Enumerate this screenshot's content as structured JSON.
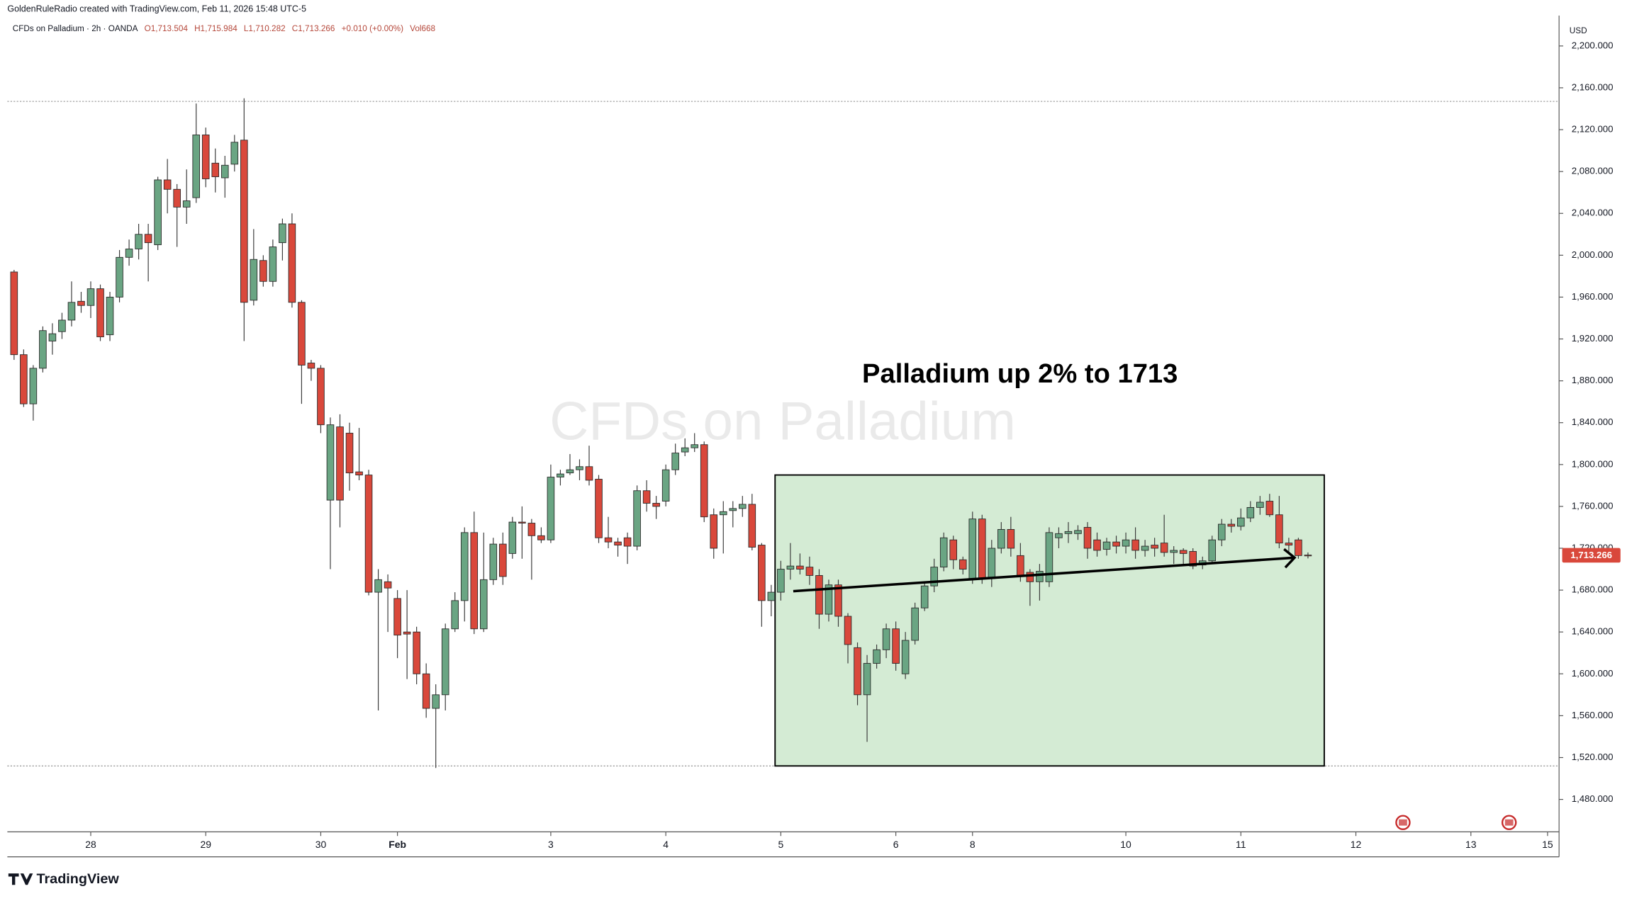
{
  "chart_data": {
    "type": "candlestick",
    "header": "GoldenRuleRadio created with TradingView.com, Feb 11, 2026 15:48 UTC-5",
    "legend": {
      "symbol": "CFDs on Palladium · 2h · OANDA",
      "open": "O1,713.504",
      "high": "H1,715.984",
      "low": "L1,710.282",
      "close": "C1,713.266",
      "change": "+0.010 (+0.00%)",
      "volume": "Vol668"
    },
    "currency": "USD",
    "watermark": "CFDs on Palladium",
    "annotation": "Palladium up 2% to 1713",
    "last_price_label": "1,713.266",
    "logo": "TradingView",
    "up_color": "#6aa583",
    "down_color": "#d9483b",
    "x": [
      0,
      1,
      2,
      3,
      4,
      5,
      6,
      7,
      8,
      9,
      10,
      11,
      12,
      13,
      14,
      15,
      16,
      17,
      18,
      19,
      20,
      21,
      22,
      23,
      24,
      25,
      26,
      27,
      28,
      29,
      30,
      31,
      32,
      33,
      34,
      35,
      36,
      37,
      38,
      39,
      40,
      41,
      42,
      43,
      44,
      45,
      46,
      47,
      48,
      49,
      50,
      51,
      52,
      53,
      54,
      55,
      56,
      57,
      58,
      59,
      60,
      61,
      62,
      63,
      64,
      65,
      66,
      67,
      68,
      69,
      70,
      71,
      72,
      73,
      74,
      75,
      76,
      77,
      78,
      79,
      80,
      81,
      82,
      83,
      84,
      85,
      86,
      87,
      88,
      89,
      90,
      91,
      92,
      93,
      94,
      95,
      96,
      97,
      98,
      99,
      100,
      101,
      102,
      103,
      104,
      105,
      106,
      107,
      108,
      109,
      110,
      111,
      112,
      113,
      114,
      115,
      116,
      117,
      118,
      119,
      120,
      121,
      122,
      123,
      124,
      125,
      126,
      127,
      128,
      129,
      130,
      131,
      132,
      133,
      134,
      135
    ],
    "open": [
      1984,
      1905,
      1858,
      1892,
      1918,
      1927,
      1938,
      1956,
      1952,
      1968,
      1924,
      1960,
      1998,
      2006,
      2020,
      2010,
      2072,
      2063,
      2046,
      2055,
      2115,
      2088,
      2074,
      2087,
      2110,
      1957,
      1995,
      1975,
      2012,
      2030,
      1955,
      1897,
      1892,
      1766,
      1836,
      1830,
      1793,
      1790,
      1678,
      1688,
      1672,
      1640,
      1640,
      1600,
      1567,
      1580,
      1643,
      1670,
      1735,
      1643,
      1690,
      1724,
      1715,
      1745,
      1744,
      1732,
      1728,
      1788,
      1792,
      1795,
      1798,
      1786,
      1730,
      1726,
      1730,
      1722,
      1775,
      1763,
      1765,
      1795,
      1812,
      1816,
      1819,
      1752,
      1752,
      1756,
      1758,
      1762,
      1723,
      1670,
      1678,
      1700,
      1703,
      1702,
      1694,
      1657,
      1685,
      1655,
      1625,
      1580,
      1610,
      1623,
      1643,
      1600,
      1632,
      1663,
      1684,
      1702,
      1728,
      1709,
      1691,
      1748,
      1691,
      1720,
      1738,
      1713,
      1697,
      1688,
      1688,
      1730,
      1734,
      1734,
      1740,
      1728,
      1719,
      1726,
      1722,
      1728,
      1718,
      1723,
      1725,
      1716,
      1718,
      1717,
      1704,
      1708,
      1728,
      1743,
      1741,
      1749,
      1759,
      1765,
      1752,
      1725,
      1728,
      1713.504
    ],
    "high": [
      1986,
      1910,
      1895,
      1932,
      1935,
      1945,
      1975,
      1965,
      1975,
      1972,
      1965,
      2005,
      2015,
      2030,
      2030,
      2075,
      2092,
      2068,
      2082,
      2145,
      2122,
      2102,
      2095,
      2115,
      2150,
      2025,
      2000,
      2015,
      2035,
      2040,
      1957,
      1900,
      1895,
      1845,
      1848,
      1840,
      1835,
      1795,
      1700,
      1695,
      1680,
      1680,
      1645,
      1610,
      1590,
      1648,
      1678,
      1740,
      1755,
      1735,
      1730,
      1735,
      1750,
      1760,
      1748,
      1740,
      1800,
      1795,
      1810,
      1805,
      1818,
      1790,
      1750,
      1730,
      1735,
      1780,
      1785,
      1770,
      1800,
      1820,
      1825,
      1830,
      1822,
      1758,
      1765,
      1765,
      1770,
      1772,
      1725,
      1685,
      1708,
      1725,
      1715,
      1712,
      1700,
      1690,
      1690,
      1658,
      1630,
      1618,
      1628,
      1648,
      1650,
      1640,
      1668,
      1688,
      1710,
      1735,
      1732,
      1712,
      1755,
      1752,
      1728,
      1745,
      1750,
      1725,
      1700,
      1705,
      1740,
      1740,
      1745,
      1742,
      1745,
      1735,
      1730,
      1732,
      1735,
      1740,
      1728,
      1730,
      1752,
      1722,
      1720,
      1720,
      1712,
      1732,
      1748,
      1748,
      1758,
      1765,
      1770,
      1772,
      1770,
      1730,
      1730,
      1715.984
    ],
    "low": [
      1900,
      1855,
      1842,
      1888,
      1905,
      1920,
      1932,
      1945,
      1940,
      1918,
      1918,
      1955,
      1990,
      1996,
      1975,
      2005,
      2040,
      2008,
      2030,
      2050,
      2065,
      2060,
      2055,
      2080,
      1918,
      1952,
      1970,
      1970,
      1995,
      1950,
      1858,
      1880,
      1830,
      1700,
      1740,
      1775,
      1785,
      1675,
      1565,
      1640,
      1615,
      1595,
      1590,
      1558,
      1510,
      1565,
      1640,
      1650,
      1638,
      1640,
      1685,
      1685,
      1710,
      1710,
      1690,
      1725,
      1725,
      1780,
      1790,
      1785,
      1780,
      1725,
      1720,
      1712,
      1705,
      1718,
      1755,
      1748,
      1760,
      1790,
      1808,
      1812,
      1745,
      1710,
      1715,
      1740,
      1750,
      1718,
      1645,
      1655,
      1670,
      1690,
      1695,
      1685,
      1643,
      1650,
      1645,
      1610,
      1570,
      1535,
      1605,
      1615,
      1603,
      1595,
      1628,
      1660,
      1678,
      1698,
      1700,
      1695,
      1686,
      1686,
      1683,
      1715,
      1712,
      1688,
      1665,
      1670,
      1683,
      1720,
      1725,
      1728,
      1710,
      1712,
      1713,
      1715,
      1715,
      1710,
      1712,
      1712,
      1712,
      1705,
      1705,
      1700,
      1700,
      1705,
      1722,
      1735,
      1737,
      1745,
      1752,
      1750,
      1720,
      1715,
      1710,
      1710.282
    ],
    "close": [
      1905,
      1858,
      1892,
      1928,
      1925,
      1938,
      1955,
      1952,
      1968,
      1922,
      1960,
      1998,
      2006,
      2020,
      2012,
      2072,
      2063,
      2046,
      2052,
      2115,
      2073,
      2075,
      2086,
      2108,
      1955,
      1996,
      1975,
      2008,
      2030,
      1955,
      1895,
      1892,
      1838,
      1838,
      1766,
      1792,
      1790,
      1678,
      1690,
      1682,
      1637,
      1638,
      1600,
      1567,
      1580,
      1643,
      1670,
      1735,
      1643,
      1690,
      1724,
      1693,
      1745,
      1744,
      1732,
      1728,
      1788,
      1791,
      1795,
      1798,
      1785,
      1730,
      1726,
      1723,
      1722,
      1775,
      1763,
      1760,
      1795,
      1811,
      1816,
      1819,
      1750,
      1720,
      1755,
      1758,
      1762,
      1721,
      1670,
      1678,
      1700,
      1703,
      1700,
      1694,
      1657,
      1685,
      1655,
      1628,
      1580,
      1610,
      1623,
      1643,
      1610,
      1632,
      1663,
      1684,
      1702,
      1730,
      1709,
      1700,
      1748,
      1691,
      1720,
      1738,
      1720,
      1694,
      1688,
      1698,
      1735,
      1734,
      1736,
      1737,
      1720,
      1718,
      1726,
      1722,
      1728,
      1718,
      1722,
      1720,
      1716,
      1718,
      1715,
      1703,
      1708,
      1728,
      1743,
      1741,
      1749,
      1759,
      1764,
      1752,
      1725,
      1723,
      1713,
      1713.266
    ],
    "xlim": [
      -0.7,
      161.2
    ],
    "xticks": [
      {
        "value": 8,
        "label": "28"
      },
      {
        "value": 20,
        "label": "29"
      },
      {
        "value": 32,
        "label": "30"
      },
      {
        "value": 40,
        "label": "Feb"
      },
      {
        "value": 56,
        "label": "3"
      },
      {
        "value": 68,
        "label": "4"
      },
      {
        "value": 80,
        "label": "5"
      },
      {
        "value": 92,
        "label": "6"
      },
      {
        "value": 100,
        "label": "8"
      },
      {
        "value": 116,
        "label": "10"
      },
      {
        "value": 128,
        "label": "11"
      },
      {
        "value": 140,
        "label": "12"
      },
      {
        "value": 152,
        "label": "13"
      },
      {
        "value": 160,
        "label": "15"
      }
    ],
    "ylim": [
      1449,
      2229
    ],
    "yticks": [
      {
        "value": 1480,
        "label": "1,480.000"
      },
      {
        "value": 1520,
        "label": "1,520.000"
      },
      {
        "value": 1560,
        "label": "1,560.000"
      },
      {
        "value": 1600,
        "label": "1,600.000"
      },
      {
        "value": 1640,
        "label": "1,640.000"
      },
      {
        "value": 1680,
        "label": "1,680.000"
      },
      {
        "value": 1720,
        "label": "1,720.000"
      },
      {
        "value": 1760,
        "label": "1,760.000"
      },
      {
        "value": 1800,
        "label": "1,800.000"
      },
      {
        "value": 1840,
        "label": "1,840.000"
      },
      {
        "value": 1880,
        "label": "1,880.000"
      },
      {
        "value": 1920,
        "label": "1,920.000"
      },
      {
        "value": 1960,
        "label": "1,960.000"
      },
      {
        "value": 2000,
        "label": "2,000.000"
      },
      {
        "value": 2040,
        "label": "2,040.000"
      },
      {
        "value": 2080,
        "label": "2,080.000"
      },
      {
        "value": 2120,
        "label": "2,120.000"
      },
      {
        "value": 2160,
        "label": "2,160.000"
      },
      {
        "value": 2200,
        "label": "2,200.000"
      }
    ],
    "price_lines": [
      2147,
      1512
    ],
    "rectangle": {
      "x": [
        79.4,
        136.7
      ],
      "y": [
        1512,
        1790
      ],
      "color": "#d4ebd4"
    },
    "arrow": {
      "x": [
        81.3,
        133.6
      ],
      "y": [
        1679,
        1711
      ]
    }
  }
}
